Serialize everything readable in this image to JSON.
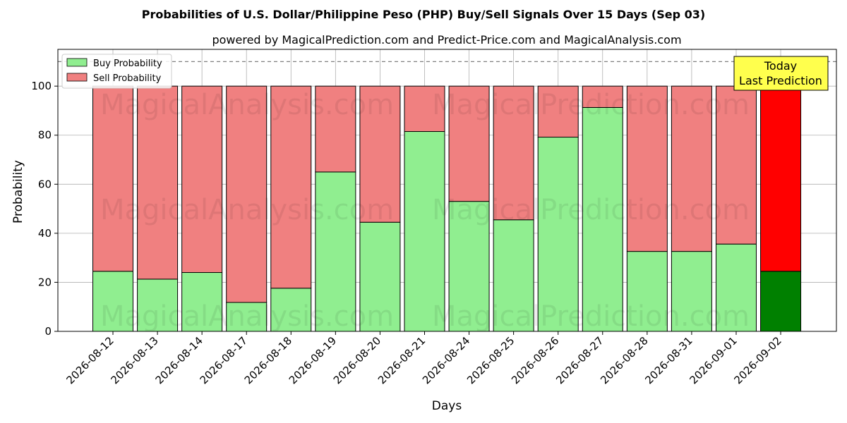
{
  "chart_data": {
    "type": "bar",
    "stacked": true,
    "title": "Probabilities of U.S. Dollar/Philippine Peso (PHP) Buy/Sell Signals Over 15 Days (Sep 03)",
    "subtitle": "powered by MagicalPrediction.com and Predict-Price.com and MagicalAnalysis.com",
    "xlabel": "Days",
    "ylabel": "Probability",
    "ylim": [
      0,
      115
    ],
    "yticks": [
      0,
      20,
      40,
      60,
      80,
      100
    ],
    "reference_line": 110,
    "grid": true,
    "legend_position": "top-left",
    "categories": [
      "2026-08-12",
      "2026-08-13",
      "2026-08-14",
      "2026-08-17",
      "2026-08-18",
      "2026-08-19",
      "2026-08-20",
      "2026-08-21",
      "2026-08-24",
      "2026-08-25",
      "2026-08-26",
      "2026-08-27",
      "2026-08-28",
      "2026-08-31",
      "2026-09-01",
      "2026-09-02"
    ],
    "series": [
      {
        "name": "Buy Probability",
        "color": "#90ee90",
        "highlight_color": "#008000",
        "values": [
          24.5,
          21.3,
          24.0,
          11.8,
          17.6,
          65.0,
          44.5,
          81.5,
          53.0,
          45.5,
          79.2,
          91.3,
          32.6,
          32.6,
          35.6,
          24.5
        ]
      },
      {
        "name": "Sell Probability",
        "color": "#f08080",
        "highlight_color": "#ff0000",
        "values": [
          75.5,
          78.7,
          76.0,
          88.2,
          82.4,
          35.0,
          55.5,
          18.5,
          47.0,
          54.5,
          20.8,
          8.7,
          67.4,
          67.4,
          64.4,
          75.5
        ]
      }
    ],
    "highlight_index": 15,
    "annotation": {
      "lines": [
        "Today",
        "Last Prediction"
      ],
      "background": "#ffff4d"
    },
    "watermarks": [
      "MagicalAnalysis.com",
      "MagicalPrediction.com"
    ]
  }
}
